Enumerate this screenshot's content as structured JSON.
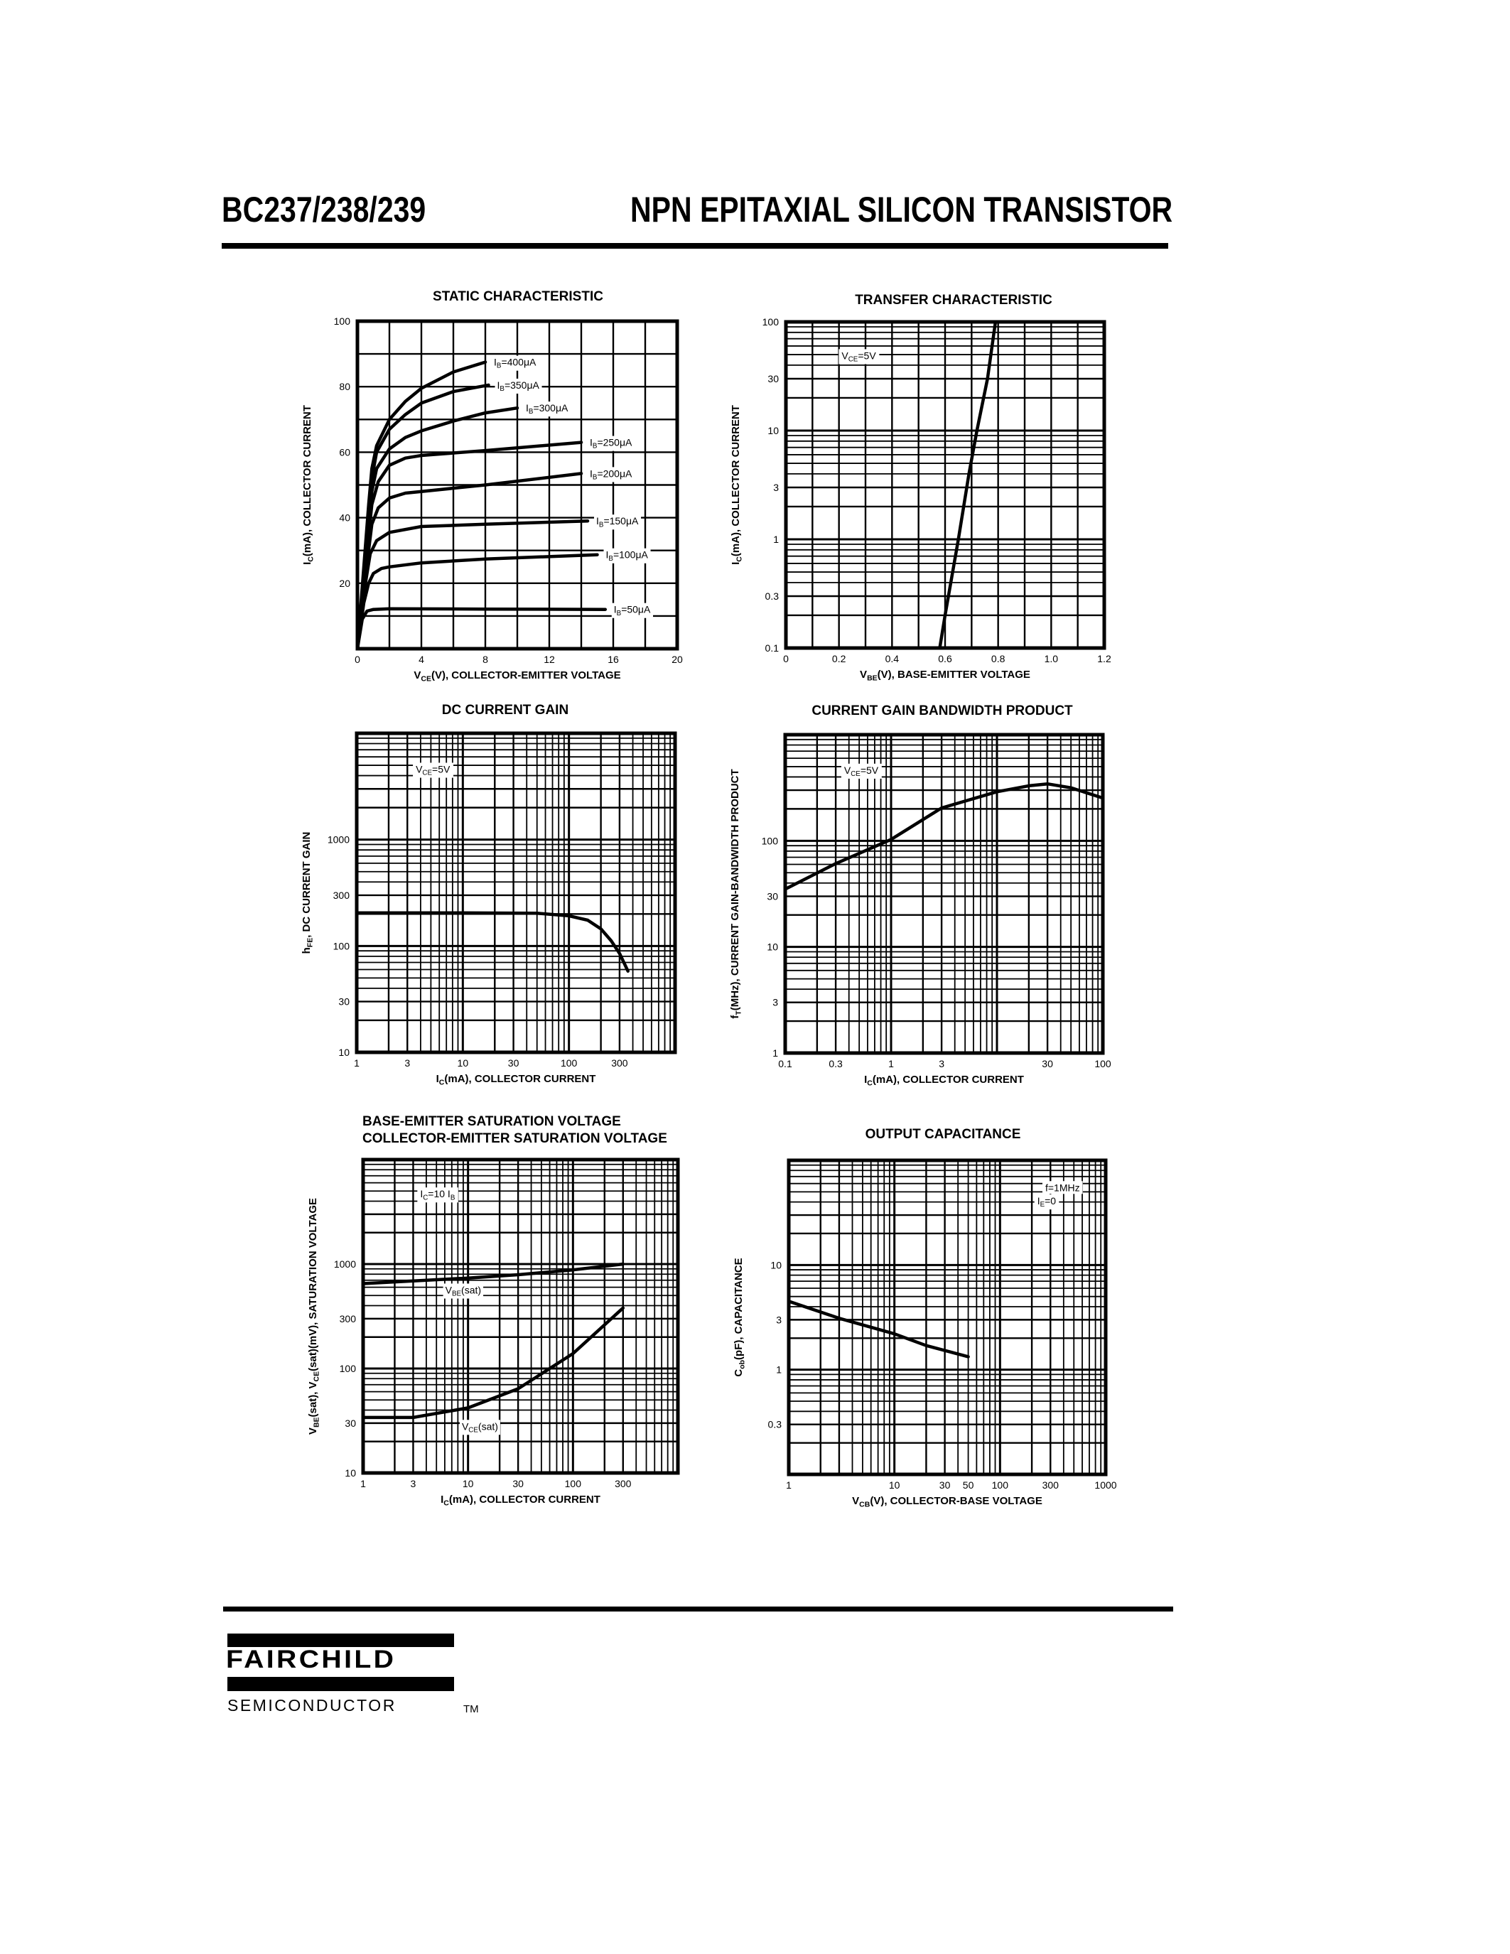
{
  "header": {
    "part_number": "BC237/238/239",
    "description": "NPN EPITAXIAL SILICON TRANSISTOR"
  },
  "footer": {
    "logo_name": "FAIRCHILD",
    "logo_sub": "SEMICONDUCTOR",
    "logo_tm": "TM"
  },
  "chart_data": [
    {
      "type": "line",
      "title": [
        "STATIC CHARACTERISTIC"
      ],
      "xlabel": "V_{CE}(V), COLLECTOR-EMITTER VOLTAGE",
      "ylabel": "I_{C}(mA), COLLECTOR CURRENT",
      "xscale": "linear",
      "yscale": "linear",
      "xlim": [
        0,
        20
      ],
      "ylim": [
        0,
        100
      ],
      "xgrid_step": 2,
      "ygrid_step": 10,
      "xticks": [
        0,
        4,
        8,
        12,
        16,
        20
      ],
      "yticks": [
        20,
        40,
        60,
        80,
        100
      ],
      "grid": true,
      "series": [
        {
          "name": "I_{B}=400μA",
          "points": [
            [
              0,
              0
            ],
            [
              0.7,
              44
            ],
            [
              0.9,
              55
            ],
            [
              1.2,
              62
            ],
            [
              2,
              70
            ],
            [
              3,
              75.5
            ],
            [
              4,
              79.5
            ],
            [
              6,
              84.5
            ],
            [
              8,
              87.5
            ]
          ]
        },
        {
          "name": "I_{B}=350μA",
          "points": [
            [
              0,
              0
            ],
            [
              0.7,
              40
            ],
            [
              0.9,
              52
            ],
            [
              1.2,
              60
            ],
            [
              2,
              67
            ],
            [
              3,
              71.5
            ],
            [
              4,
              75
            ],
            [
              6,
              78.5
            ],
            [
              8.2,
              80.5
            ]
          ]
        },
        {
          "name": "I_{B}=300μA",
          "points": [
            [
              0,
              0
            ],
            [
              0.7,
              36
            ],
            [
              0.9,
              48
            ],
            [
              1.2,
              55
            ],
            [
              2,
              61
            ],
            [
              3,
              64.5
            ],
            [
              4,
              66.5
            ],
            [
              6,
              69.5
            ],
            [
              8,
              72
            ],
            [
              10,
              73.5
            ]
          ]
        },
        {
          "name": "I_{B}=250μA",
          "points": [
            [
              0,
              0
            ],
            [
              0.6,
              30
            ],
            [
              0.9,
              44
            ],
            [
              1.3,
              51
            ],
            [
              2,
              56
            ],
            [
              3,
              58.2
            ],
            [
              4,
              59
            ],
            [
              8,
              60.5
            ],
            [
              14,
              63
            ]
          ]
        },
        {
          "name": "I_{B}=200μA",
          "points": [
            [
              0,
              0
            ],
            [
              0.6,
              26
            ],
            [
              0.9,
              38
            ],
            [
              1.3,
              43
            ],
            [
              2,
              46
            ],
            [
              3,
              47.5
            ],
            [
              4,
              48
            ],
            [
              8,
              50
            ],
            [
              14,
              53.5
            ]
          ]
        },
        {
          "name": "I_{B}=150μA",
          "points": [
            [
              0,
              0
            ],
            [
              0.5,
              20
            ],
            [
              0.8,
              29
            ],
            [
              1.2,
              33
            ],
            [
              2,
              35.5
            ],
            [
              4,
              37.3
            ],
            [
              8,
              38
            ],
            [
              14.4,
              39
            ]
          ]
        },
        {
          "name": "I_{B}=100μA",
          "points": [
            [
              0,
              0
            ],
            [
              0.4,
              14
            ],
            [
              0.7,
              20
            ],
            [
              1,
              23
            ],
            [
              1.5,
              24.5
            ],
            [
              2,
              25
            ],
            [
              4,
              26.2
            ],
            [
              8,
              27.4
            ],
            [
              15,
              28.7
            ]
          ]
        },
        {
          "name": "I_{B}=50μA",
          "points": [
            [
              0,
              0
            ],
            [
              0.3,
              9
            ],
            [
              0.6,
              11.5
            ],
            [
              1,
              12
            ],
            [
              2,
              12.2
            ],
            [
              8,
              12.1
            ],
            [
              15.5,
              12
            ]
          ]
        }
      ],
      "annotations": []
    },
    {
      "type": "line",
      "title": [
        "TRANSFER CHARACTERISTIC"
      ],
      "xlabel": "V_{BE}(V), BASE-EMITTER VOLTAGE",
      "ylabel": "I_{C}(mA), COLLECTOR CURRENT",
      "xscale": "linear",
      "yscale": "log",
      "xlim": [
        0,
        1.2
      ],
      "ylim": [
        0.1,
        100
      ],
      "xgrid_step": 0.1,
      "xticks": [
        0,
        0.2,
        0.4,
        0.6,
        0.8,
        1.0,
        1.2
      ],
      "xtick_labels": [
        "0",
        "0.2",
        "0.4",
        "0.6",
        "0.8",
        "1.0",
        "1.2"
      ],
      "yticks": [
        0.1,
        0.3,
        1,
        3,
        10,
        30,
        100
      ],
      "grid": true,
      "series": [
        {
          "points": [
            [
              0.58,
              0.1
            ],
            [
              0.6,
              0.2
            ],
            [
              0.65,
              1
            ],
            [
              0.69,
              4
            ],
            [
              0.72,
              10
            ],
            [
              0.76,
              30
            ],
            [
              0.79,
              100
            ]
          ]
        }
      ],
      "annotations": [
        "V_{CE}=5V"
      ]
    },
    {
      "type": "line",
      "title": [
        "DC CURRENT GAIN"
      ],
      "xlabel": "I_{C}(mA), COLLECTOR CURRENT",
      "ylabel": "h_{FE}, DC CURRENT GAIN",
      "xscale": "log",
      "yscale": "log",
      "xlim": [
        1,
        1000
      ],
      "ylim": [
        10,
        10000
      ],
      "xticks": [
        1,
        3,
        10,
        30,
        100,
        300
      ],
      "yticks": [
        10,
        30,
        100,
        300,
        1000
      ],
      "grid": true,
      "series": [
        {
          "points": [
            [
              1,
              205
            ],
            [
              10,
              205
            ],
            [
              50,
              203
            ],
            [
              100,
              192
            ],
            [
              150,
              175
            ],
            [
              200,
              145
            ],
            [
              250,
              112
            ],
            [
              300,
              85
            ],
            [
              360,
              58
            ]
          ]
        }
      ],
      "annotations": [
        "V_{CE}=5V"
      ]
    },
    {
      "type": "line",
      "title": [
        "CURRENT GAIN BANDWIDTH PRODUCT"
      ],
      "xlabel": "I_{C}(mA), COLLECTOR CURRENT",
      "ylabel": "f_{T}(MHz), CURRENT GAIN-BANDWIDTH PRODUCT",
      "xscale": "log",
      "yscale": "log",
      "xlim": [
        0.1,
        100
      ],
      "ylim": [
        1,
        1000
      ],
      "xticks": [
        0.1,
        0.3,
        1,
        3,
        30,
        100
      ],
      "yticks": [
        1,
        3,
        10,
        30,
        100
      ],
      "grid": true,
      "series": [
        {
          "points": [
            [
              0.1,
              35
            ],
            [
              0.3,
              61
            ],
            [
              1,
              103
            ],
            [
              3,
              204
            ],
            [
              10,
              290
            ],
            [
              20,
              330
            ],
            [
              30,
              344
            ],
            [
              50,
              316
            ],
            [
              100,
              253
            ]
          ]
        }
      ],
      "annotations": [
        "V_{CE}=5V"
      ]
    },
    {
      "type": "line",
      "title": [
        "BASE-EMITTER SATURATION VOLTAGE",
        "COLLECTOR-EMITTER SATURATION VOLTAGE"
      ],
      "xlabel": "I_{C}(mA), COLLECTOR CURRENT",
      "ylabel": "V_{BE}(sat), V_{CE}(sat)(mV), SATURATION VOLTAGE",
      "xscale": "log",
      "yscale": "log",
      "xlim": [
        1,
        1000
      ],
      "ylim": [
        10,
        10000
      ],
      "xticks": [
        1,
        3,
        10,
        30,
        100,
        300
      ],
      "yticks": [
        10,
        30,
        100,
        300,
        1000
      ],
      "grid": true,
      "series": [
        {
          "name": "V_{BE}(sat)",
          "points": [
            [
              1,
              650
            ],
            [
              3,
              690
            ],
            [
              10,
              735
            ],
            [
              30,
              790
            ],
            [
              100,
              880
            ],
            [
              300,
              1000
            ]
          ]
        },
        {
          "name": "V_{CE}(sat)",
          "points": [
            [
              1,
              34
            ],
            [
              3,
              34
            ],
            [
              10,
              42
            ],
            [
              30,
              64
            ],
            [
              100,
              139
            ],
            [
              300,
              380
            ]
          ]
        }
      ],
      "annotations": [
        "I_{C}=10 I_{B}"
      ]
    },
    {
      "type": "line",
      "title": [
        "OUTPUT CAPACITANCE"
      ],
      "xlabel": "V_{CB}(V), COLLECTOR-BASE VOLTAGE",
      "ylabel": "C_{ob}(pF), CAPACITANCE",
      "xscale": "log",
      "yscale": "log",
      "xlim": [
        1,
        1000
      ],
      "ylim": [
        0.1,
        100
      ],
      "xticks": [
        1,
        10,
        30,
        50,
        100,
        300,
        1000
      ],
      "yticks": [
        0.3,
        1,
        3,
        10
      ],
      "grid": true,
      "series": [
        {
          "points": [
            [
              1,
              4.5
            ],
            [
              3,
              3.1
            ],
            [
              10,
              2.2
            ],
            [
              20,
              1.7
            ],
            [
              50,
              1.33
            ]
          ]
        }
      ],
      "annotations": [
        "f=1MHz",
        "I_{E}=0"
      ]
    }
  ]
}
